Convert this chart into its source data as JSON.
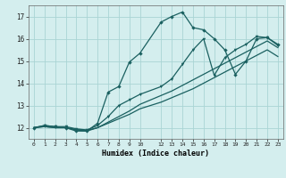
{
  "xlabel": "Humidex (Indice chaleur)",
  "bg_color": "#d4eeee",
  "grid_color": "#aad4d4",
  "line_color": "#1a6060",
  "xlim": [
    -0.5,
    23.5
  ],
  "ylim": [
    11.5,
    17.5
  ],
  "yticks": [
    12,
    13,
    14,
    15,
    16,
    17
  ],
  "series1_x": [
    0,
    1,
    2,
    3,
    4,
    5,
    6,
    7,
    8,
    9,
    10,
    12,
    13,
    14,
    15,
    16,
    17,
    18,
    19,
    20,
    21,
    22,
    23
  ],
  "series1_y": [
    12.0,
    12.1,
    12.05,
    12.0,
    11.85,
    11.85,
    12.2,
    13.6,
    13.85,
    14.95,
    15.35,
    16.75,
    17.0,
    17.2,
    16.5,
    16.4,
    16.0,
    15.5,
    14.4,
    15.0,
    16.0,
    16.05,
    15.75
  ],
  "series2_x": [
    0,
    1,
    2,
    3,
    4,
    5,
    6,
    7,
    8,
    9,
    10,
    12,
    13,
    14,
    15,
    16,
    17,
    18,
    19,
    20,
    21,
    22,
    23
  ],
  "series2_y": [
    12.0,
    12.1,
    12.05,
    12.05,
    11.95,
    11.9,
    12.1,
    12.5,
    13.0,
    13.25,
    13.5,
    13.85,
    14.2,
    14.85,
    15.5,
    16.0,
    14.35,
    15.15,
    15.5,
    15.75,
    16.1,
    16.05,
    15.7
  ],
  "series3_x": [
    0,
    1,
    2,
    3,
    4,
    5,
    6,
    7,
    8,
    9,
    10,
    12,
    13,
    14,
    15,
    16,
    17,
    18,
    19,
    20,
    21,
    22,
    23
  ],
  "series3_y": [
    12.0,
    12.05,
    12.0,
    12.0,
    11.9,
    11.85,
    12.0,
    12.25,
    12.5,
    12.75,
    13.05,
    13.45,
    13.65,
    13.9,
    14.15,
    14.4,
    14.65,
    14.9,
    15.15,
    15.4,
    15.65,
    15.9,
    15.6
  ],
  "series4_x": [
    0,
    1,
    2,
    3,
    4,
    5,
    6,
    7,
    8,
    9,
    10,
    12,
    13,
    14,
    15,
    16,
    17,
    18,
    19,
    20,
    21,
    22,
    23
  ],
  "series4_y": [
    12.0,
    12.05,
    12.0,
    12.0,
    11.92,
    11.88,
    12.0,
    12.2,
    12.4,
    12.6,
    12.85,
    13.15,
    13.35,
    13.55,
    13.75,
    14.0,
    14.25,
    14.5,
    14.75,
    15.0,
    15.25,
    15.5,
    15.2
  ]
}
